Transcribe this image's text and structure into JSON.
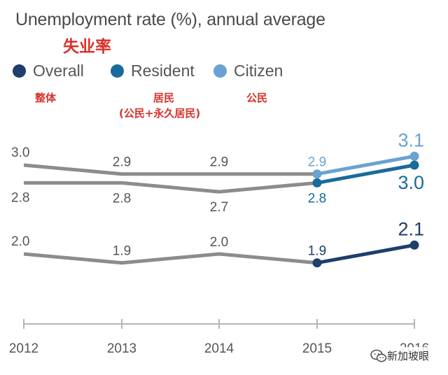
{
  "title": "Unemployment rate (%), annual average",
  "subtitle_cn": "失业率",
  "legend": [
    {
      "label": "Overall",
      "label_cn": "整体",
      "color": "#1c3f6b"
    },
    {
      "label": "Resident",
      "label_cn": "居民",
      "label_cn2": "(公民+永久居民)",
      "color": "#1a6a9c"
    },
    {
      "label": "Citizen",
      "label_cn": "公民",
      "color": "#6aa2d3"
    }
  ],
  "watermark": "新加坡眼",
  "colors": {
    "historical": "#8c8c8c",
    "axis": "#b5b5b5",
    "value_text": "#555555"
  },
  "chart_data": {
    "type": "line",
    "categories": [
      "2012",
      "2013",
      "2014",
      "2015",
      "2016"
    ],
    "series": [
      {
        "name": "Overall",
        "values": [
          2.0,
          1.9,
          2.0,
          1.9,
          2.1
        ]
      },
      {
        "name": "Resident",
        "values": [
          2.8,
          2.8,
          2.7,
          2.8,
          3.0
        ]
      },
      {
        "name": "Citizen",
        "values": [
          3.0,
          2.9,
          2.9,
          2.9,
          3.1
        ]
      }
    ],
    "title": "Unemployment rate (%), annual average",
    "grid": false,
    "legend_position": "top"
  }
}
